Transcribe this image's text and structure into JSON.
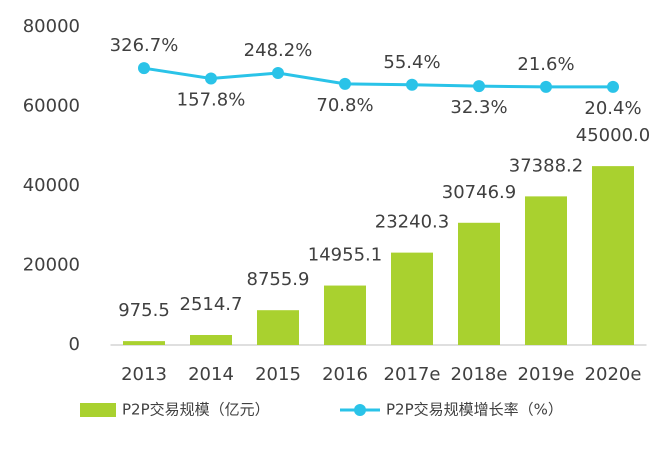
{
  "chart_data": {
    "type": "bar-line",
    "categories": [
      "2013",
      "2014",
      "2015",
      "2016",
      "2017e",
      "2018e",
      "2019e",
      "2020e"
    ],
    "series": [
      {
        "name": "P2P交易规模（亿元）",
        "type": "bar",
        "color": "#a9d12f",
        "values": [
          975.5,
          2514.7,
          8755.9,
          14955.1,
          23240.3,
          30746.9,
          37388.2,
          45000.0
        ],
        "value_labels": [
          "975.5",
          "2514.7",
          "8755.9",
          "14955.1",
          "23240.3",
          "30746.9",
          "37388.2",
          "45000.0"
        ]
      },
      {
        "name": "P2P交易规模增长率（%）",
        "type": "line",
        "color": "#2ac3e8",
        "axis": "y2",
        "values": [
          326.7,
          157.8,
          248.2,
          70.8,
          55.4,
          32.3,
          21.6,
          20.4
        ],
        "value_labels": [
          "326.7%",
          "157.8%",
          "248.2%",
          "70.8%",
          "55.4%",
          "32.3%",
          "21.6%",
          "20.4%"
        ]
      }
    ],
    "ylim": [
      0,
      80000
    ],
    "yticks": [
      0,
      20000,
      40000,
      60000,
      80000
    ],
    "y2lim": [
      -4200,
      1000
    ],
    "grid": false,
    "legend": "bottom"
  }
}
